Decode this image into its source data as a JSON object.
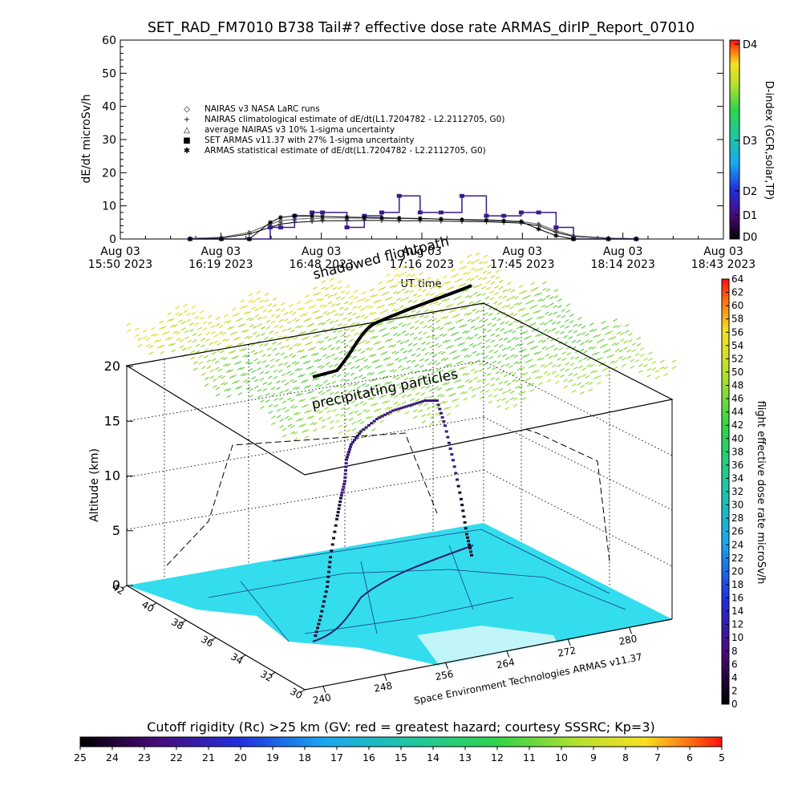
{
  "title": "SET_RAD_FM7010  B738 Tail#? effective dose rate ARMAS_dirIP_Report_07010",
  "top_chart": {
    "ylabel": "dE/dt microSv/h",
    "xlabel": "UT time",
    "ylim": [
      0,
      60
    ],
    "yticks": [
      "0",
      "10",
      "20",
      "30",
      "40",
      "50",
      "60"
    ],
    "xticks": [
      {
        "l1": "Aug 03",
        "l2": "15:50 2023"
      },
      {
        "l1": "Aug 03",
        "l2": "16:19 2023"
      },
      {
        "l1": "Aug 03",
        "l2": "16:48 2023"
      },
      {
        "l1": "Aug 03",
        "l2": "17:16 2023"
      },
      {
        "l1": "Aug 03",
        "l2": "17:45 2023"
      },
      {
        "l1": "Aug 03",
        "l2": "18:14 2023"
      },
      {
        "l1": "Aug 03",
        "l2": "18:43 2023"
      }
    ],
    "legend": [
      {
        "symbol": "◇",
        "label": "NAIRAS v3 NASA LaRC runs",
        "color": "#000000"
      },
      {
        "symbol": "+",
        "label": "NAIRAS climatological estimate of dE/dt(L1.7204782 - L2.2112705, G0)",
        "color": "#000000"
      },
      {
        "symbol": "△",
        "label": "average NAIRAS v3 10% 1-sigma uncertainty",
        "color": "#000000"
      },
      {
        "symbol": "■",
        "label": "SET ARMAS v11.37 with 27% 1-sigma uncertainty",
        "color": "#2020d0"
      },
      {
        "symbol": "✱",
        "label": "ARMAS statistical estimate of dE/dt(L1.7204782 - L2.2112705, G0)",
        "color": "#000000"
      }
    ],
    "right_axis": {
      "label": "D-index (GCR,solar,TP)",
      "ticks": [
        "D4",
        "D3",
        "D2",
        "D1",
        "D0"
      ]
    }
  },
  "chart_data": [
    {
      "type": "line",
      "title": "SET_RAD_FM7010  B738 Tail#? effective dose rate ARMAS_dirIP_Report_07010",
      "xlabel": "UT time",
      "ylabel": "dE/dt microSv/h",
      "xlim": [
        "15:50",
        "18:43"
      ],
      "ylim": [
        0,
        60
      ],
      "x": [
        "16:10",
        "16:19",
        "16:27",
        "16:33",
        "16:36",
        "16:40",
        "16:45",
        "16:48",
        "16:55",
        "17:00",
        "17:05",
        "17:10",
        "17:16",
        "17:22",
        "17:28",
        "17:35",
        "17:40",
        "17:45",
        "17:50",
        "17:55",
        "18:00",
        "18:10",
        "18:18"
      ],
      "series": [
        {
          "name": "NAIRAS v3 NASA LaRC runs",
          "values": [
            0.2,
            0.5,
            2.0,
            4.5,
            5.5,
            6.0,
            6.2,
            6.3,
            6.3,
            6.3,
            6.2,
            6.2,
            6.1,
            6.0,
            5.9,
            5.8,
            5.6,
            5.3,
            4.5,
            2.5,
            1.0,
            0.3,
            0.1
          ]
        },
        {
          "name": "NAIRAS climatological estimate of dE/dt(L1.7204782 - L2.2112705, G0)",
          "values": [
            0.1,
            0.3,
            1.5,
            3.5,
            4.5,
            5.0,
            5.3,
            5.5,
            5.5,
            5.6,
            5.6,
            5.5,
            5.5,
            5.4,
            5.3,
            5.2,
            5.0,
            4.8,
            4.0,
            2.0,
            0.8,
            0.2,
            0.1
          ]
        },
        {
          "name": "average NAIRAS v3 10% 1-sigma uncertainty",
          "values": [
            0.2,
            0.5,
            2.0,
            4.5,
            5.5,
            6.0,
            6.2,
            6.3,
            6.3,
            6.3,
            6.2,
            6.2,
            6.1,
            6.0,
            5.9,
            5.8,
            5.6,
            5.3,
            4.5,
            2.5,
            1.0,
            0.3,
            0.1
          ]
        },
        {
          "name": "SET ARMAS v11.37 with 27% 1-sigma uncertainty",
          "values": [
            0,
            0,
            0,
            3.5,
            3.5,
            7,
            8,
            8,
            3.5,
            7,
            8,
            13,
            8,
            8,
            13,
            7,
            7,
            8,
            8,
            3.5,
            0,
            0,
            0
          ]
        },
        {
          "name": "ARMAS statistical estimate of dE/dt(L1.7204782 - L2.2112705, G0)",
          "values": [
            0,
            0,
            0,
            5.0,
            6.5,
            7.0,
            7.0,
            6.8,
            6.6,
            6.5,
            6.4,
            6.3,
            6.2,
            6.0,
            5.8,
            5.6,
            5.4,
            5.2,
            3.0,
            1.0,
            0,
            0,
            0
          ]
        }
      ]
    },
    {
      "type": "scatter",
      "title": "",
      "zlabel": "Altitude (km)",
      "zlim": [
        0,
        20
      ],
      "zticks": [
        "0",
        "5",
        "10",
        "15",
        "20"
      ],
      "latitude_ticks": [
        "42",
        "40",
        "38",
        "36",
        "34",
        "32",
        "30"
      ],
      "longitude_ticks": [
        "240",
        "248",
        "256",
        "264",
        "272",
        "280"
      ],
      "flight_altitude_km": [
        0,
        1,
        2.5,
        4,
        6,
        7,
        8,
        9.5,
        10.5,
        11.2,
        11.8,
        12.1,
        12.3,
        12.5,
        12.5,
        11.5,
        9,
        6,
        3,
        1
      ],
      "dose_colorbar": {
        "label": "flight effective dose rate microSv/h",
        "range": [
          0,
          64
        ],
        "ticks": [
          "64",
          "62",
          "60",
          "58",
          "56",
          "54",
          "52",
          "50",
          "48",
          "46",
          "44",
          "42",
          "40",
          "38",
          "36",
          "34",
          "32",
          "30",
          "28",
          "26",
          "24",
          "22",
          "20",
          "18",
          "16",
          "14",
          "12",
          "10",
          "8",
          "6",
          "4",
          "2",
          "0"
        ]
      }
    }
  ],
  "map3d": {
    "zlabel": "Altitude (km)",
    "annotations": {
      "shadowed": "shadowed flightpath",
      "precip": "precipitating particles"
    },
    "credit": "Space Environment Technologies ARMAS v11.37",
    "surface_color": "#33ddee"
  },
  "colorbar_right": {
    "label": "flight effective dose rate microSv/h"
  },
  "colorbar_bottom": {
    "title": "Cutoff rigidity (Rc) >25 km (GV: red = greatest hazard; courtesy SSSRC; Kp=3)",
    "ticks": [
      "25",
      "24",
      "23",
      "22",
      "21",
      "20",
      "19",
      "18",
      "17",
      "16",
      "15",
      "14",
      "13",
      "12",
      "11",
      "10",
      "9",
      "8",
      "7",
      "6",
      "5"
    ]
  }
}
